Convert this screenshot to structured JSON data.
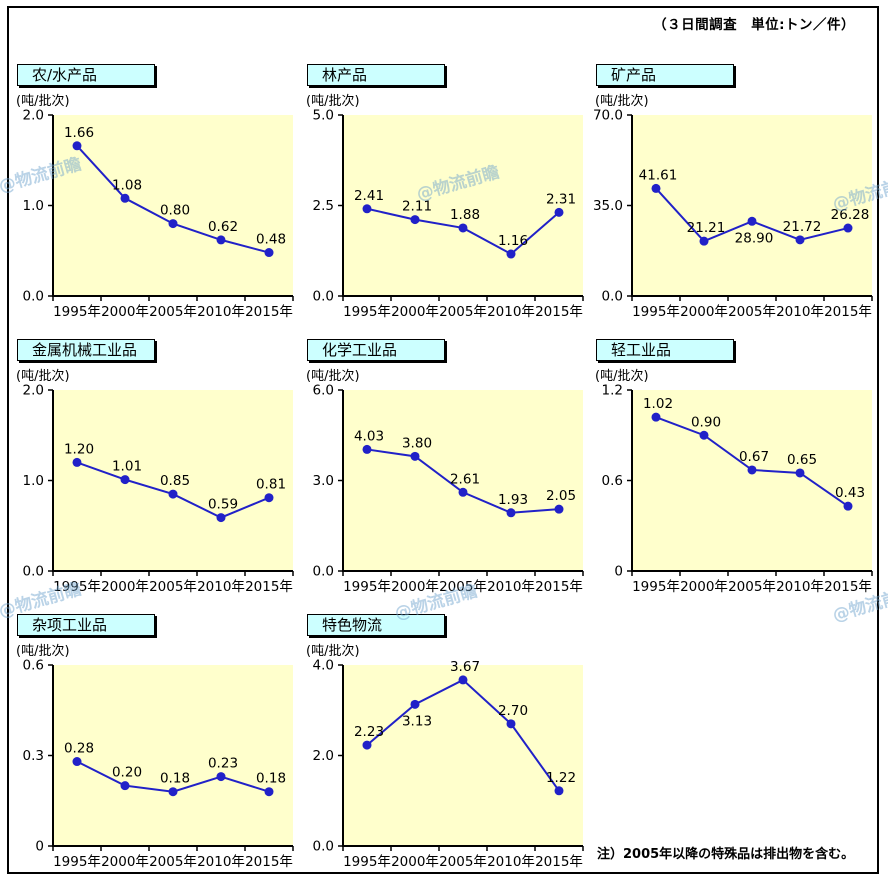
{
  "header": {
    "survey_note": "（３日間調査　単位:トン／件）"
  },
  "footnote": "注）2005年以降の特殊品は排出物を含む。",
  "watermark": {
    "text": "@物流前瞻",
    "color": "#6EA2CD"
  },
  "colors": {
    "line": "#2121C8",
    "marker": "#2121C8",
    "plot_bg": "#FFFFCC",
    "title_bg": "#CCFFFF",
    "axis": "#000000",
    "label_text": "#000000"
  },
  "chart_data": [
    {
      "type": "line",
      "title": "农/水产品",
      "ylabel": "(吨/批次)",
      "categories": [
        "1995年",
        "2000年",
        "2005年",
        "2010年",
        "2015年"
      ],
      "values": [
        1.66,
        1.08,
        0.8,
        0.62,
        0.48
      ],
      "value_labels": [
        "1.66",
        "1.08",
        "0.80",
        "0.62",
        "0.48"
      ],
      "label_positions": [
        "above",
        "above",
        "above",
        "above",
        "above"
      ],
      "ylim": [
        0,
        2.0
      ],
      "yticks": [
        "2.0",
        "1.0",
        "0.0"
      ],
      "grid": false,
      "legend": "none"
    },
    {
      "type": "line",
      "title": "林产品",
      "ylabel": "(吨/批次)",
      "categories": [
        "1995年",
        "2000年",
        "2005年",
        "2010年",
        "2015年"
      ],
      "values": [
        2.41,
        2.11,
        1.88,
        1.16,
        2.31
      ],
      "value_labels": [
        "2.41",
        "2.11",
        "1.88",
        "1.16",
        "2.31"
      ],
      "label_positions": [
        "above",
        "above",
        "above",
        "above",
        "above"
      ],
      "ylim": [
        0,
        5.0
      ],
      "yticks": [
        "5.0",
        "2.5",
        "0.0"
      ],
      "grid": false,
      "legend": "none"
    },
    {
      "type": "line",
      "title": "矿产品",
      "ylabel": "(吨/批次)",
      "categories": [
        "1995年",
        "2000年",
        "2005年",
        "2010年",
        "2015年"
      ],
      "values": [
        41.61,
        21.21,
        28.9,
        21.72,
        26.28
      ],
      "value_labels": [
        "41.61",
        "21.21",
        "28.90",
        "21.72",
        "26.28"
      ],
      "label_positions": [
        "above",
        "above",
        "below",
        "above",
        "above"
      ],
      "ylim": [
        0,
        70.0
      ],
      "yticks": [
        "70.0",
        "35.0",
        "0.0"
      ],
      "grid": false,
      "legend": "none"
    },
    {
      "type": "line",
      "title": "金属机械工业品",
      "ylabel": "(吨/批次)",
      "categories": [
        "1995年",
        "2000年",
        "2005年",
        "2010年",
        "2015年"
      ],
      "values": [
        1.2,
        1.01,
        0.85,
        0.59,
        0.81
      ],
      "value_labels": [
        "1.20",
        "1.01",
        "0.85",
        "0.59",
        "0.81"
      ],
      "label_positions": [
        "above",
        "above",
        "above",
        "above",
        "above"
      ],
      "ylim": [
        0,
        2.0
      ],
      "yticks": [
        "2.0",
        "1.0",
        "0.0"
      ],
      "grid": false,
      "legend": "none"
    },
    {
      "type": "line",
      "title": "化学工业品",
      "ylabel": "(吨/批次)",
      "categories": [
        "1995年",
        "2000年",
        "2005年",
        "2010年",
        "2015年"
      ],
      "values": [
        4.03,
        3.8,
        2.61,
        1.93,
        2.05
      ],
      "value_labels": [
        "4.03",
        "3.80",
        "2.61",
        "1.93",
        "2.05"
      ],
      "label_positions": [
        "above",
        "above",
        "above",
        "above",
        "above"
      ],
      "ylim": [
        0,
        6.0
      ],
      "yticks": [
        "6.0",
        "3.0",
        "0.0"
      ],
      "grid": false,
      "legend": "none"
    },
    {
      "type": "line",
      "title": "轻工业品",
      "ylabel": "(吨/批次)",
      "categories": [
        "1995年",
        "2000年",
        "2005年",
        "2010年",
        "2015年"
      ],
      "values": [
        1.02,
        0.9,
        0.67,
        0.65,
        0.43
      ],
      "value_labels": [
        "1.02",
        "0.90",
        "0.67",
        "0.65",
        "0.43"
      ],
      "label_positions": [
        "above",
        "above",
        "above",
        "above",
        "above"
      ],
      "ylim": [
        0,
        1.2
      ],
      "yticks": [
        "1.2",
        "0.6",
        "0"
      ],
      "grid": false,
      "legend": "none"
    },
    {
      "type": "line",
      "title": "杂项工业品",
      "ylabel": "(吨/批次)",
      "categories": [
        "1995年",
        "2000年",
        "2005年",
        "2010年",
        "2015年"
      ],
      "values": [
        0.28,
        0.2,
        0.18,
        0.23,
        0.18
      ],
      "value_labels": [
        "0.28",
        "0.20",
        "0.18",
        "0.23",
        "0.18"
      ],
      "label_positions": [
        "above",
        "above",
        "above",
        "above",
        "above"
      ],
      "ylim": [
        0,
        0.6
      ],
      "yticks": [
        "0.6",
        "0.3",
        "0"
      ],
      "grid": false,
      "legend": "none"
    },
    {
      "type": "line",
      "title": "特色物流",
      "ylabel": "(吨/批次)",
      "categories": [
        "1995年",
        "2000年",
        "2005年",
        "2010年",
        "2015年"
      ],
      "values": [
        2.23,
        3.13,
        3.67,
        2.7,
        1.22
      ],
      "value_labels": [
        "2.23",
        "3.13",
        "3.67",
        "2.70",
        "1.22"
      ],
      "label_positions": [
        "above",
        "below",
        "above",
        "above",
        "above"
      ],
      "ylim": [
        0,
        4.0
      ],
      "yticks": [
        "4.0",
        "2.0",
        "0.0"
      ],
      "grid": false,
      "legend": "none"
    }
  ]
}
